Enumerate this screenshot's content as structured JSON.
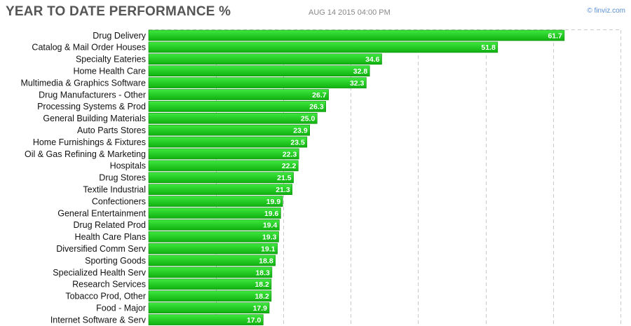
{
  "header": {
    "title": "YEAR TO DATE PERFORMANCE %",
    "datetime": "AUG 14 2015 04:00 PM",
    "watermark": "© finviz.com"
  },
  "colors": {
    "bar_top": "#3ee83e",
    "bar_bottom": "#0fb00f",
    "bar_edge": "#0a8a0a"
  },
  "chart_data": {
    "type": "bar",
    "orientation": "horizontal",
    "title": "YEAR TO DATE PERFORMANCE %",
    "categories": [
      "Drug Delivery",
      "Catalog & Mail Order Houses",
      "Specialty Eateries",
      "Home Health Care",
      "Multimedia & Graphics Software",
      "Drug Manufacturers - Other",
      "Processing Systems & Prod",
      "General Building Materials",
      "Auto Parts Stores",
      "Home Furnishings & Fixtures",
      "Oil & Gas Refining & Marketing",
      "Hospitals",
      "Drug Stores",
      "Textile Industrial",
      "Confectioners",
      "General Entertainment",
      "Drug Related Prod",
      "Health Care Plans",
      "Diversified Comm Serv",
      "Sporting Goods",
      "Specialized Health Serv",
      "Research Services",
      "Tobacco Prod, Other",
      "Food - Major",
      "Internet Software & Serv"
    ],
    "values": [
      61.7,
      51.8,
      34.6,
      32.8,
      32.3,
      26.7,
      26.3,
      25.0,
      23.9,
      23.5,
      22.3,
      22.2,
      21.5,
      21.3,
      19.9,
      19.6,
      19.4,
      19.3,
      19.1,
      18.8,
      18.3,
      18.2,
      18.2,
      17.9,
      17.0
    ],
    "xlim": [
      0,
      70
    ],
    "grid": true
  }
}
